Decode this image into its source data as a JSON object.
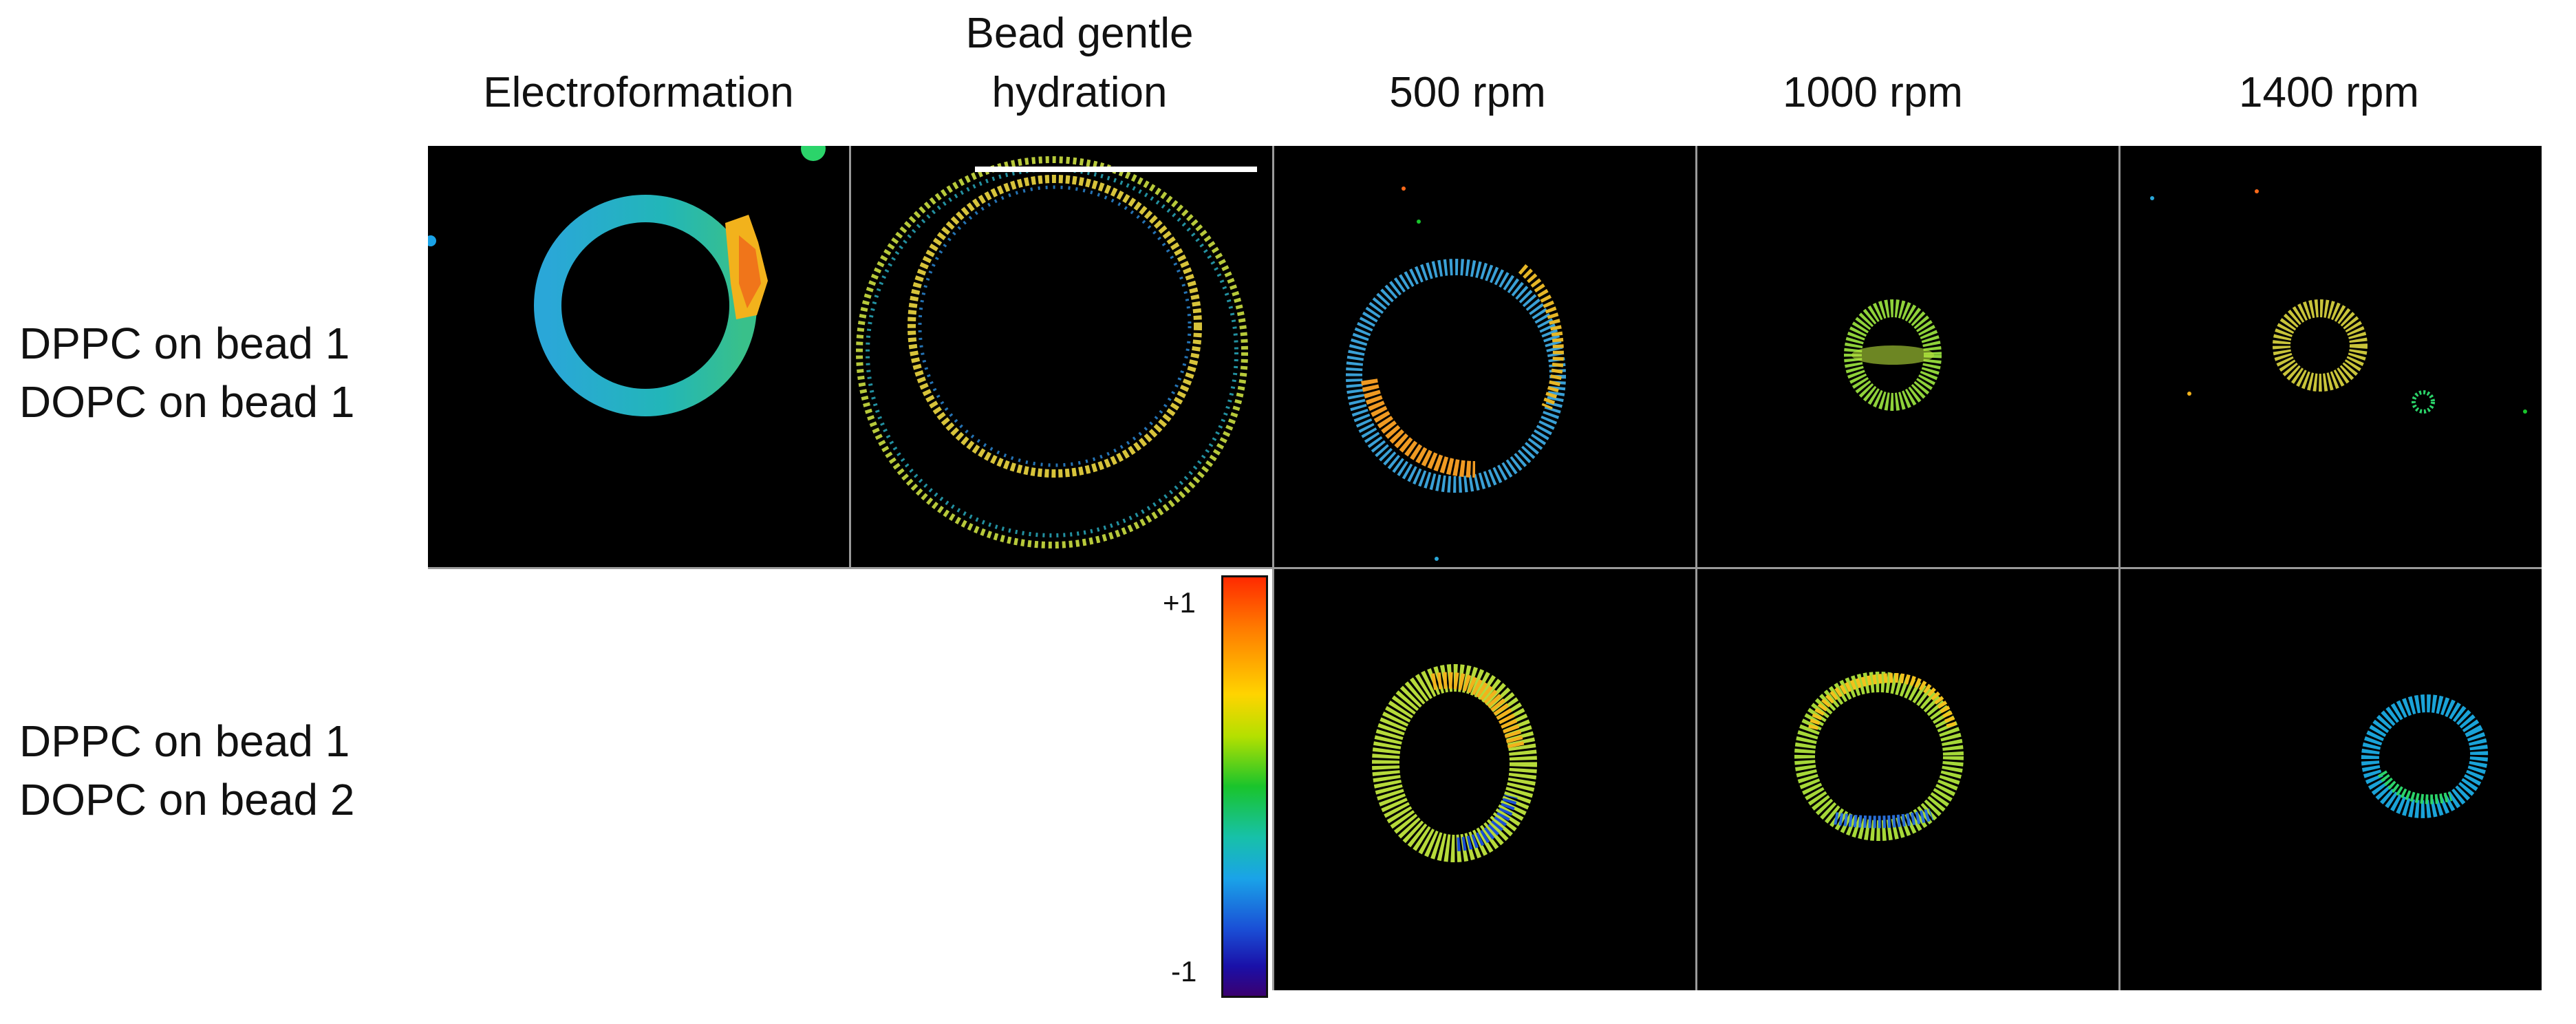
{
  "columns": [
    "Electroformation",
    "Bead gentle\nhydration",
    "500 rpm",
    "1000 rpm",
    "1400 rpm"
  ],
  "rows": [
    {
      "label_line1": "DPPC on bead 1",
      "label_line2": "DOPC on bead 1"
    },
    {
      "label_line1": "DPPC on bead 1",
      "label_line2": "DOPC on bead 2"
    }
  ],
  "colorbar": {
    "max_label": "+1",
    "min_label": "-1"
  },
  "colors": {
    "panel_bg": "#000000",
    "grid_line": "#9a9a9a",
    "scale_bar": "#ffffff"
  },
  "panels": [
    {
      "row": 0,
      "col": 0,
      "name": "electroformation-vesicle"
    },
    {
      "row": 0,
      "col": 1,
      "name": "bead-hydration-vesicle"
    },
    {
      "row": 0,
      "col": 2,
      "name": "500rpm-vesicle-row1"
    },
    {
      "row": 0,
      "col": 3,
      "name": "1000rpm-vesicle-row1"
    },
    {
      "row": 0,
      "col": 4,
      "name": "1400rpm-vesicle-row1"
    },
    {
      "row": 1,
      "col": 2,
      "name": "500rpm-vesicle-row2"
    },
    {
      "row": 1,
      "col": 3,
      "name": "1000rpm-vesicle-row2"
    },
    {
      "row": 1,
      "col": 4,
      "name": "1400rpm-vesicle-row2"
    }
  ]
}
